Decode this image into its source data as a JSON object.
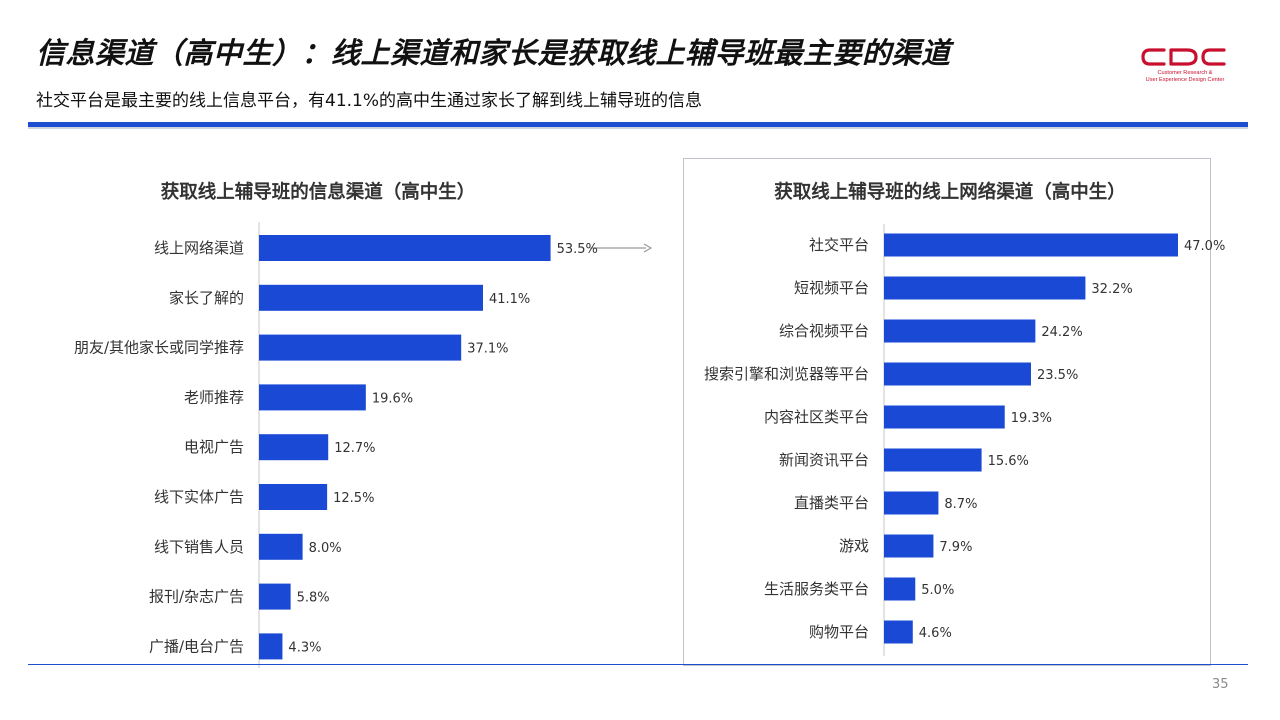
{
  "header": {
    "title": "信息渠道（高中生）：线上渠道和家长是获取线上辅导班最主要的渠道",
    "subtitle": "社交平台是最主要的线上信息平台，有41.1%的高中生通过家长了解到线上辅导班的信息"
  },
  "logo": {
    "mark": "CDC",
    "line1": "Customer Research &",
    "line2": "User Experience Design Center"
  },
  "page_number": "35",
  "colors": {
    "accent": "#1f4fd1",
    "bar": "#1a49d6",
    "logo": "#c8102e"
  },
  "chart_data": [
    {
      "type": "bar",
      "orientation": "horizontal",
      "title": "获取线上辅导班的信息渠道（高中生）",
      "categories": [
        "线上网络渠道",
        "家长了解的",
        "朋友/其他家长或同学推荐",
        "老师推荐",
        "电视广告",
        "线下实体广告",
        "线下销售人员",
        "报刊/杂志广告",
        "广播/电台广告"
      ],
      "values": [
        53.5,
        41.1,
        37.1,
        19.6,
        12.7,
        12.5,
        8.0,
        5.8,
        4.3
      ],
      "value_labels": [
        "53.5%",
        "41.1%",
        "37.1%",
        "19.6%",
        "12.7%",
        "12.5%",
        "8.0%",
        "5.8%",
        "4.3%"
      ],
      "unit": "%",
      "xlim": [
        0,
        60
      ],
      "grid": false
    },
    {
      "type": "bar",
      "orientation": "horizontal",
      "title": "获取线上辅导班的线上网络渠道（高中生）",
      "categories": [
        "社交平台",
        "短视频平台",
        "综合视频平台",
        "搜索引擎和浏览器等平台",
        "内容社区类平台",
        "新闻资讯平台",
        "直播类平台",
        "游戏",
        "生活服务类平台",
        "购物平台"
      ],
      "values": [
        47.0,
        32.2,
        24.2,
        23.5,
        19.3,
        15.6,
        8.7,
        7.9,
        5.0,
        4.6
      ],
      "value_labels": [
        "47.0%",
        "32.2%",
        "24.2%",
        "23.5%",
        "19.3%",
        "15.6%",
        "8.7%",
        "7.9%",
        "5.0%",
        "4.6%"
      ],
      "unit": "%",
      "xlim": [
        0,
        47
      ],
      "grid": false
    }
  ]
}
